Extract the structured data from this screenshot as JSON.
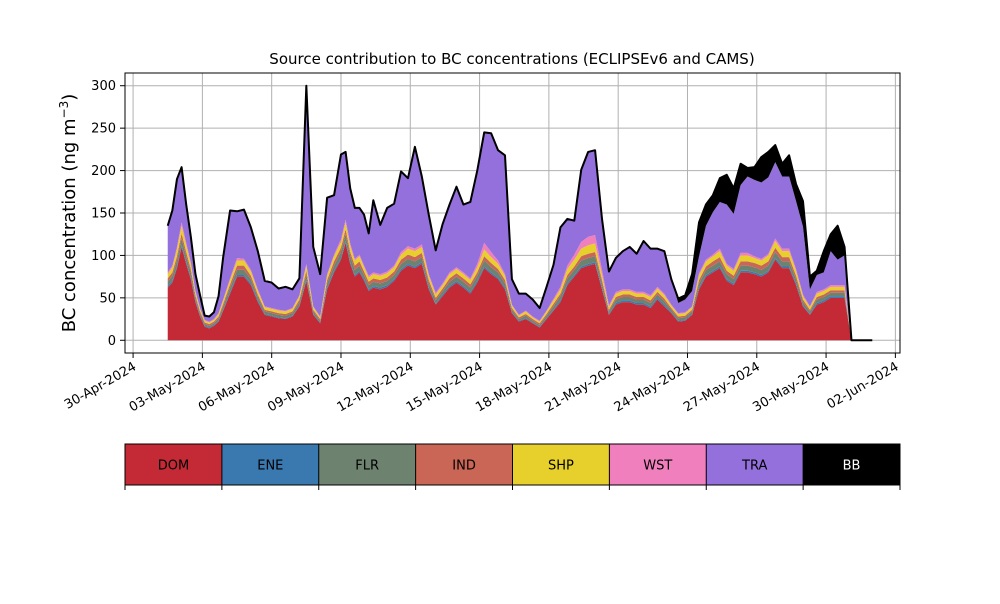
{
  "chart_data": {
    "type": "area",
    "stacked": true,
    "title": "Source contribution to BC concentrations (ECLIPSEv6 and CAMS)",
    "ylabel_main": "BC concentration (ng m",
    "ylabel_sup": "−3",
    "ylabel_tail": ")",
    "ylim": [
      -15,
      315
    ],
    "yticks": [
      0,
      50,
      100,
      150,
      200,
      250,
      300
    ],
    "ytick_labels": [
      "0",
      "50",
      "100",
      "150",
      "200",
      "250",
      "300"
    ],
    "xlim_days": [
      -0.35,
      33.2
    ],
    "xticks": [
      {
        "day": 0,
        "label": "30-Apr-2024"
      },
      {
        "day": 3,
        "label": "03-May-2024"
      },
      {
        "day": 6,
        "label": "06-May-2024"
      },
      {
        "day": 9,
        "label": "09-May-2024"
      },
      {
        "day": 12,
        "label": "12-May-2024"
      },
      {
        "day": 15,
        "label": "15-May-2024"
      },
      {
        "day": 18,
        "label": "18-May-2024"
      },
      {
        "day": 21,
        "label": "21-May-2024"
      },
      {
        "day": 24,
        "label": "24-May-2024"
      },
      {
        "day": 27,
        "label": "27-May-2024"
      },
      {
        "day": 30,
        "label": "30-May-2024"
      },
      {
        "day": 33,
        "label": "02-Jun-2024"
      }
    ],
    "grid": true,
    "series_order": [
      "DOM",
      "ENE",
      "FLR",
      "IND",
      "SHP",
      "WST",
      "TRA",
      "BB"
    ],
    "colors": {
      "DOM": "#c42a36",
      "ENE": "#3a78b0",
      "FLR": "#6e8270",
      "IND": "#c96655",
      "SHP": "#e7cf2c",
      "WST": "#f07fbd",
      "TRA": "#9370db",
      "BB": "#000000"
    },
    "total_line_color": "#000000",
    "x_days": [
      1.5,
      1.7,
      1.9,
      2.1,
      2.3,
      2.5,
      2.7,
      2.9,
      3.1,
      3.3,
      3.5,
      3.7,
      3.9,
      4.2,
      4.5,
      4.8,
      5.1,
      5.4,
      5.7,
      6.0,
      6.3,
      6.6,
      6.9,
      7.2,
      7.5,
      7.8,
      8.1,
      8.4,
      8.7,
      9.0,
      9.2,
      9.4,
      9.6,
      9.8,
      10.0,
      10.2,
      10.4,
      10.7,
      11.0,
      11.3,
      11.6,
      11.9,
      12.2,
      12.5,
      12.8,
      13.1,
      13.4,
      13.7,
      14.0,
      14.3,
      14.6,
      14.9,
      15.2,
      15.5,
      15.8,
      16.1,
      16.4,
      16.7,
      17.0,
      17.3,
      17.6,
      17.9,
      18.2,
      18.5,
      18.8,
      19.1,
      19.4,
      19.7,
      20.0,
      20.3,
      20.6,
      20.9,
      21.2,
      21.5,
      21.8,
      22.1,
      22.4,
      22.7,
      23.0,
      23.3,
      23.6,
      23.9,
      24.2,
      24.5,
      24.8,
      25.1,
      25.4,
      25.7,
      26.0,
      26.3,
      26.6,
      26.9,
      27.2,
      27.5,
      27.8,
      28.1,
      28.4,
      28.7,
      29.0,
      29.3,
      29.6,
      29.9,
      30.2,
      30.5,
      30.8,
      31.1,
      31.4,
      31.7,
      32.0
    ],
    "values": {
      "DOM": [
        62,
        68,
        85,
        110,
        90,
        72,
        45,
        28,
        16,
        14,
        17,
        22,
        35,
        55,
        75,
        75,
        65,
        45,
        30,
        28,
        26,
        25,
        28,
        40,
        70,
        30,
        20,
        60,
        80,
        95,
        115,
        90,
        75,
        80,
        70,
        58,
        62,
        60,
        63,
        70,
        82,
        88,
        85,
        90,
        60,
        42,
        52,
        62,
        68,
        62,
        55,
        68,
        85,
        78,
        72,
        60,
        32,
        22,
        25,
        20,
        15,
        25,
        35,
        45,
        65,
        75,
        85,
        88,
        90,
        60,
        30,
        42,
        45,
        45,
        42,
        42,
        38,
        48,
        40,
        32,
        22,
        23,
        30,
        60,
        75,
        80,
        85,
        70,
        65,
        80,
        80,
        78,
        75,
        80,
        95,
        85,
        85,
        65,
        40,
        30,
        42,
        45,
        50,
        50,
        50
      ],
      "ENE": [
        2,
        2,
        2,
        2,
        2,
        2,
        1,
        1,
        1,
        1,
        1,
        1,
        1,
        2,
        2,
        2,
        2,
        2,
        1,
        1,
        1,
        1,
        1,
        1,
        2,
        1,
        1,
        2,
        2,
        2,
        2,
        2,
        2,
        2,
        2,
        2,
        2,
        2,
        2,
        2,
        2,
        2,
        2,
        2,
        2,
        1,
        2,
        2,
        2,
        2,
        2,
        2,
        2,
        2,
        2,
        2,
        1,
        1,
        1,
        1,
        1,
        1,
        1,
        2,
        2,
        2,
        2,
        2,
        2,
        2,
        1,
        2,
        2,
        2,
        2,
        2,
        2,
        2,
        2,
        1,
        1,
        1,
        1,
        2,
        2,
        2,
        2,
        2,
        2,
        2,
        2,
        2,
        2,
        2,
        2,
        2,
        2,
        2,
        1,
        1,
        2,
        2,
        2,
        2,
        2
      ],
      "FLR": [
        5,
        6,
        7,
        8,
        7,
        6,
        4,
        3,
        2,
        2,
        2,
        3,
        4,
        5,
        6,
        6,
        5,
        4,
        3,
        3,
        3,
        3,
        3,
        4,
        6,
        3,
        2,
        5,
        6,
        7,
        8,
        7,
        6,
        6,
        5,
        5,
        5,
        5,
        5,
        5,
        6,
        6,
        6,
        6,
        5,
        4,
        4,
        5,
        5,
        5,
        5,
        6,
        7,
        6,
        6,
        5,
        3,
        2,
        3,
        2,
        2,
        3,
        4,
        5,
        6,
        6,
        7,
        7,
        7,
        5,
        3,
        4,
        4,
        4,
        4,
        4,
        4,
        4,
        4,
        3,
        3,
        3,
        3,
        5,
        6,
        6,
        6,
        6,
        5,
        6,
        6,
        6,
        6,
        6,
        7,
        6,
        6,
        5,
        4,
        3,
        4,
        4,
        4,
        4,
        4
      ],
      "IND": [
        4,
        4,
        5,
        6,
        5,
        4,
        3,
        2,
        2,
        2,
        2,
        2,
        3,
        4,
        5,
        5,
        4,
        3,
        2,
        2,
        2,
        2,
        2,
        3,
        4,
        2,
        2,
        4,
        5,
        5,
        6,
        5,
        5,
        5,
        4,
        4,
        4,
        4,
        4,
        4,
        5,
        5,
        5,
        5,
        4,
        3,
        3,
        4,
        4,
        4,
        4,
        4,
        5,
        5,
        4,
        4,
        2,
        2,
        2,
        2,
        2,
        2,
        3,
        3,
        4,
        4,
        5,
        5,
        5,
        4,
        2,
        3,
        3,
        3,
        3,
        3,
        3,
        3,
        3,
        2,
        2,
        2,
        2,
        4,
        4,
        5,
        5,
        4,
        4,
        5,
        5,
        5,
        5,
        5,
        5,
        5,
        5,
        4,
        3,
        2,
        3,
        3,
        3,
        3,
        3
      ],
      "SHP": [
        5,
        6,
        8,
        9,
        8,
        6,
        4,
        3,
        2,
        2,
        2,
        3,
        4,
        5,
        6,
        6,
        5,
        4,
        3,
        3,
        3,
        3,
        3,
        4,
        6,
        3,
        2,
        5,
        6,
        7,
        8,
        7,
        6,
        6,
        5,
        5,
        5,
        5,
        5,
        5,
        6,
        7,
        7,
        7,
        5,
        4,
        4,
        5,
        5,
        5,
        5,
        6,
        8,
        7,
        6,
        5,
        3,
        2,
        3,
        2,
        2,
        3,
        4,
        5,
        7,
        8,
        9,
        10,
        10,
        6,
        3,
        4,
        4,
        4,
        4,
        4,
        4,
        4,
        4,
        3,
        3,
        3,
        3,
        6,
        6,
        6,
        7,
        6,
        6,
        7,
        7,
        6,
        6,
        7,
        8,
        7,
        7,
        6,
        4,
        3,
        4,
        4,
        4,
        4,
        4
      ],
      "WST": [
        2,
        2,
        3,
        4,
        3,
        2,
        1,
        1,
        1,
        1,
        1,
        1,
        1,
        2,
        3,
        2,
        2,
        2,
        1,
        1,
        1,
        1,
        1,
        1,
        2,
        1,
        1,
        2,
        2,
        3,
        3,
        3,
        2,
        2,
        2,
        2,
        2,
        2,
        2,
        2,
        3,
        3,
        3,
        3,
        2,
        2,
        2,
        2,
        2,
        2,
        2,
        4,
        8,
        6,
        4,
        2,
        1,
        1,
        1,
        1,
        1,
        1,
        2,
        3,
        4,
        6,
        8,
        10,
        10,
        6,
        2,
        2,
        2,
        2,
        2,
        2,
        2,
        2,
        2,
        1,
        1,
        1,
        1,
        2,
        2,
        2,
        3,
        2,
        2,
        3,
        3,
        2,
        2,
        2,
        3,
        3,
        3,
        2,
        2,
        1,
        2,
        2,
        2,
        2,
        2
      ],
      "TRA": [
        55,
        65,
        80,
        65,
        45,
        30,
        20,
        15,
        5,
        6,
        8,
        20,
        50,
        80,
        55,
        58,
        50,
        45,
        30,
        30,
        25,
        28,
        22,
        20,
        210,
        70,
        50,
        90,
        70,
        100,
        80,
        65,
        60,
        55,
        60,
        50,
        85,
        58,
        75,
        73,
        95,
        80,
        120,
        80,
        70,
        50,
        70,
        80,
        95,
        80,
        90,
        110,
        130,
        140,
        130,
        140,
        30,
        25,
        20,
        20,
        15,
        28,
        40,
        70,
        55,
        40,
        85,
        100,
        100,
        60,
        40,
        40,
        45,
        50,
        45,
        60,
        55,
        45,
        50,
        30,
        12,
        15,
        18,
        20,
        40,
        50,
        55,
        70,
        65,
        80,
        90,
        90,
        90,
        90,
        90,
        85,
        85,
        80,
        80,
        20,
        20,
        20,
        40,
        30,
        35
      ],
      "BB": [
        0,
        0,
        0,
        0,
        0,
        0,
        0,
        0,
        0,
        0,
        0,
        0,
        0,
        0,
        0,
        0,
        0,
        0,
        0,
        0,
        0,
        0,
        0,
        0,
        0,
        0,
        0,
        0,
        0,
        0,
        0,
        0,
        0,
        0,
        0,
        0,
        0,
        0,
        0,
        0,
        0,
        0,
        0,
        0,
        0,
        0,
        0,
        0,
        0,
        0,
        0,
        0,
        0,
        0,
        0,
        0,
        0,
        0,
        0,
        0,
        0,
        0,
        0,
        0,
        0,
        0,
        0,
        0,
        0,
        0,
        0,
        0,
        0,
        0,
        0,
        0,
        0,
        0,
        0,
        0,
        5,
        5,
        20,
        40,
        25,
        20,
        28,
        35,
        30,
        25,
        10,
        15,
        30,
        30,
        20,
        15,
        25,
        20,
        30,
        15,
        5,
        25,
        20,
        40,
        10
      ]
    }
  },
  "legend": {
    "items": [
      {
        "label": "DOM",
        "color": "#c42a36",
        "text_color": "#000000"
      },
      {
        "label": "ENE",
        "color": "#3a78b0",
        "text_color": "#000000"
      },
      {
        "label": "FLR",
        "color": "#6e8270",
        "text_color": "#000000"
      },
      {
        "label": "IND",
        "color": "#c96655",
        "text_color": "#000000"
      },
      {
        "label": "SHP",
        "color": "#e7cf2c",
        "text_color": "#000000"
      },
      {
        "label": "WST",
        "color": "#f07fbd",
        "text_color": "#000000"
      },
      {
        "label": "TRA",
        "color": "#9370db",
        "text_color": "#000000"
      },
      {
        "label": "BB",
        "color": "#000000",
        "text_color": "#ffffff"
      }
    ]
  }
}
